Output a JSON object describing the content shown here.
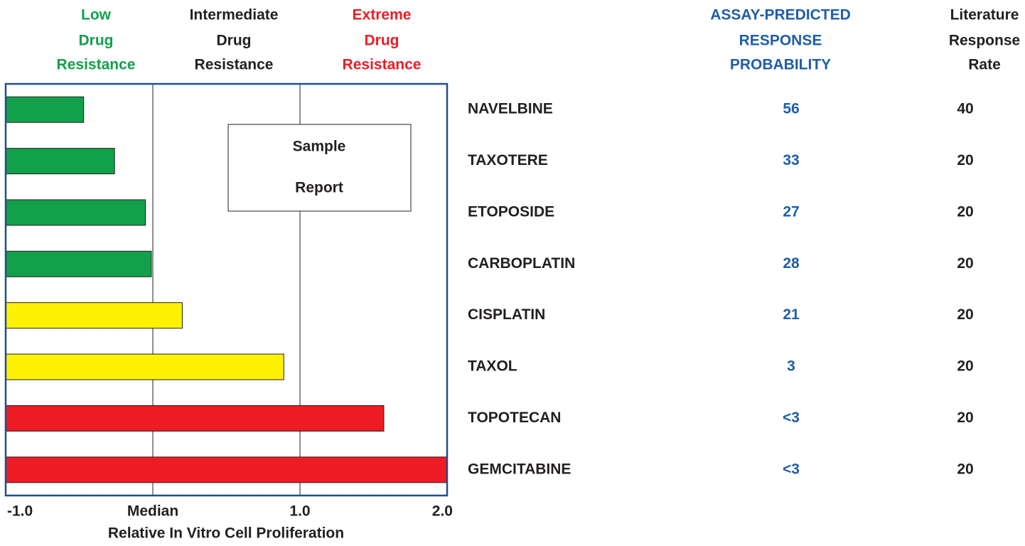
{
  "chart_data": {
    "type": "barh",
    "resistance_levels": [
      {
        "lines": [
          "Low",
          "Drug",
          "Resistance"
        ],
        "color": "#12a04a"
      },
      {
        "lines": [
          "Intermediate",
          "Drug",
          "Resistance"
        ],
        "color": "#231f20"
      },
      {
        "lines": [
          "Extreme",
          "Drug",
          "Resistance"
        ],
        "color": "#ed1c24"
      }
    ],
    "categories": [
      "NAVELBINE",
      "TAXOTERE",
      "ETOPOSIDE",
      "CARBOPLATIN",
      "CISPLATIN",
      "TAXOL",
      "TOPOTECAN",
      "GEMCITABINE"
    ],
    "values": [
      -0.47,
      -0.26,
      -0.05,
      -0.01,
      0.2,
      0.89,
      1.57,
      2.0
    ],
    "colors": [
      "#12a04a",
      "#12a04a",
      "#12a04a",
      "#12a04a",
      "#fff200",
      "#fff200",
      "#ed1c24",
      "#ed1c24"
    ],
    "xlim": [
      -1.0,
      2.0
    ],
    "xticks": [
      {
        "value": -1.0,
        "label": "-1.0"
      },
      {
        "value": 0,
        "label": "Median"
      },
      {
        "value": 1.0,
        "label": "1.0"
      },
      {
        "value": 2.0,
        "label": "2.0"
      }
    ],
    "grid": true,
    "xlabel": "Relative In Vitro Cell Proliferation",
    "annotation": [
      "Sample",
      "Report"
    ]
  },
  "table": {
    "assay_header": [
      "ASSAY-PREDICTED",
      "RESPONSE",
      "PROBABILITY"
    ],
    "literature_header": [
      "Literature",
      "Response",
      "Rate"
    ],
    "assay": [
      56,
      33,
      27,
      28,
      21,
      3,
      "<3",
      "<3"
    ],
    "literature": [
      40,
      20,
      20,
      20,
      20,
      20,
      20,
      20
    ]
  }
}
